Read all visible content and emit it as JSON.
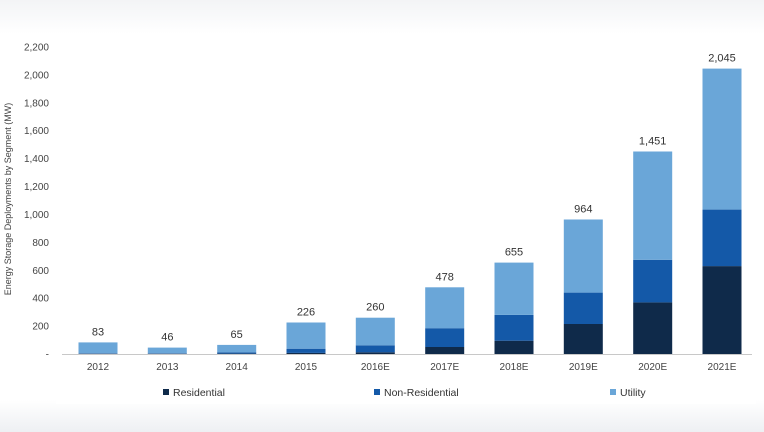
{
  "chart_data": {
    "type": "bar",
    "stacked": true,
    "categories": [
      "2012",
      "2013",
      "2014",
      "2015",
      "2016E",
      "2017E",
      "2018E",
      "2019E",
      "2020E",
      "2021E"
    ],
    "series": [
      {
        "name": "Residential",
        "color": "#0f2a4a",
        "values": [
          2,
          2,
          3,
          8,
          12,
          50,
          95,
          215,
          370,
          630
        ]
      },
      {
        "name": "Non-Residential",
        "color": "#1459a8",
        "values": [
          3,
          3,
          9,
          30,
          50,
          135,
          185,
          225,
          305,
          405
        ]
      },
      {
        "name": "Utility",
        "color": "#6aa6d8",
        "values": [
          78,
          41,
          53,
          188,
          198,
          293,
          375,
          524,
          776,
          1010
        ]
      }
    ],
    "totals": [
      "83",
      "46",
      "65",
      "226",
      "260",
      "478",
      "655",
      "964",
      "1,451",
      "2,045"
    ],
    "title": "",
    "xlabel": "",
    "ylabel": "Energy Storage Deployments by Segment (MW)",
    "ylim": [
      0,
      2200
    ],
    "yticks": [
      0,
      200,
      400,
      600,
      800,
      1000,
      1200,
      1400,
      1600,
      1800,
      2000,
      2200
    ],
    "ytick_labels": [
      "-",
      "200",
      "400",
      "600",
      "800",
      "1,000",
      "1,200",
      "1,400",
      "1,600",
      "1,800",
      "2,000",
      "2,200"
    ],
    "grid": false,
    "legend": "bottom"
  }
}
